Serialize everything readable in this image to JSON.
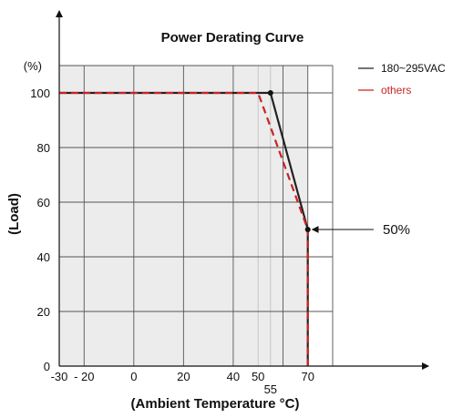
{
  "chart_data": {
    "type": "line",
    "title": "Power Derating Curve",
    "xlabel": "(Ambient Temperature °C)",
    "ylabel": "(Load)",
    "y_unit": "(%)",
    "xlim": [
      -30,
      80
    ],
    "ylim": [
      0,
      110
    ],
    "x_ticks": [
      {
        "value": -30,
        "label": "-30"
      },
      {
        "value": -20,
        "label": "- 20"
      },
      {
        "value": 0,
        "label": "0"
      },
      {
        "value": 20,
        "label": "20"
      },
      {
        "value": 40,
        "label": "40"
      },
      {
        "value": 50,
        "label": "50"
      },
      {
        "value": 55,
        "label": "55"
      },
      {
        "value": 70,
        "label": "70"
      }
    ],
    "y_ticks": [
      {
        "value": 0,
        "label": "0"
      },
      {
        "value": 20,
        "label": "20"
      },
      {
        "value": 40,
        "label": "40"
      },
      {
        "value": 60,
        "label": "60"
      },
      {
        "value": 80,
        "label": "80"
      },
      {
        "value": 100,
        "label": "100"
      }
    ],
    "grid": true,
    "legend": "top-right",
    "series": [
      {
        "name": "180~295VAC",
        "color": "#222222",
        "dash": false,
        "points": [
          [
            -30,
            100
          ],
          [
            55,
            100
          ],
          [
            70,
            50
          ],
          [
            70,
            0
          ]
        ]
      },
      {
        "name": "others",
        "color": "#cc2222",
        "dash": true,
        "points": [
          [
            -30,
            100
          ],
          [
            50,
            100
          ],
          [
            70,
            50
          ],
          [
            70,
            0
          ]
        ]
      }
    ],
    "markers": [
      [
        55,
        100
      ],
      [
        70,
        50
      ]
    ],
    "annotations": [
      {
        "text": "50%",
        "x": 70,
        "y": 50
      }
    ]
  }
}
